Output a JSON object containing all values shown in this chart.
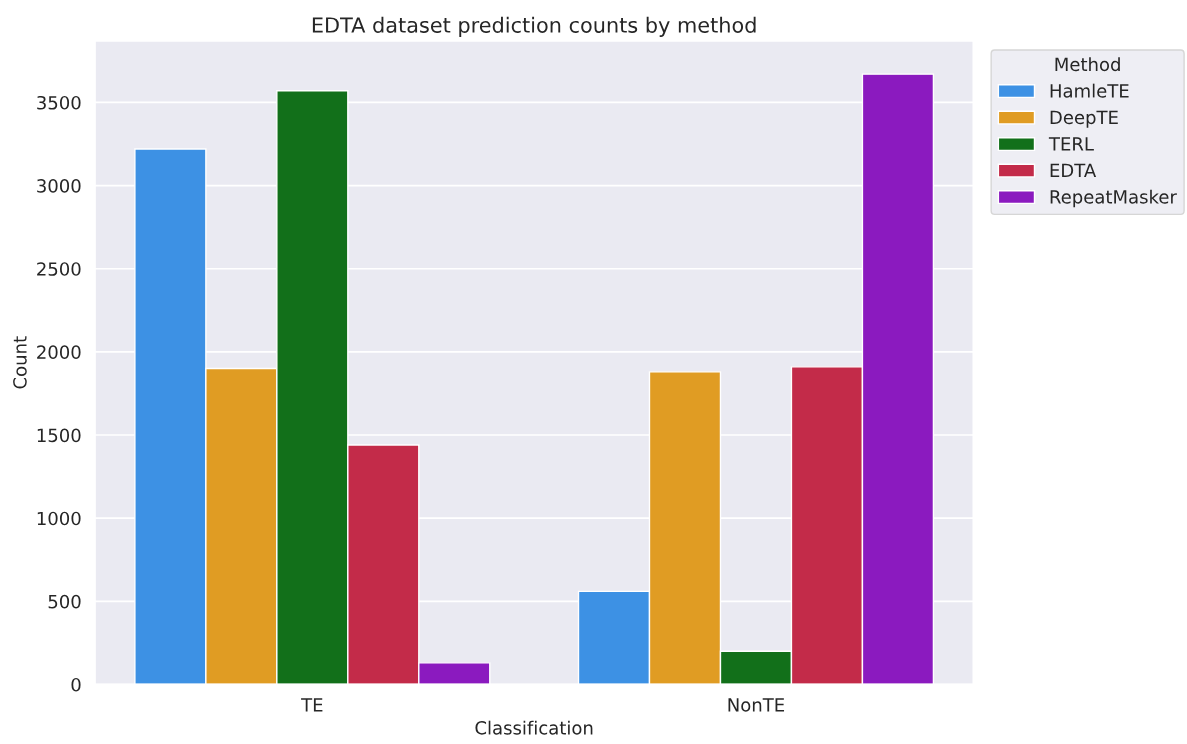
{
  "chart_data": {
    "type": "bar",
    "title": "EDTA dataset prediction counts by method",
    "xlabel": "Classification",
    "ylabel": "Count",
    "legend_title": "Method",
    "categories": [
      "TE",
      "NonTE"
    ],
    "series": [
      {
        "name": "HamleTE",
        "color": "#3d91e4",
        "values": [
          3220,
          560
        ]
      },
      {
        "name": "DeepTE",
        "color": "#e09c23",
        "values": [
          1900,
          1880
        ]
      },
      {
        "name": "TERL",
        "color": "#12701a",
        "values": [
          3570,
          200
        ]
      },
      {
        "name": "EDTA",
        "color": "#c32b49",
        "values": [
          1440,
          1910
        ]
      },
      {
        "name": "RepeatMasker",
        "color": "#8b1abf",
        "values": [
          130,
          3670
        ]
      }
    ],
    "ylim": [
      0,
      3870
    ],
    "yticks": [
      0,
      500,
      1000,
      1500,
      2000,
      2500,
      3000,
      3500
    ],
    "grid": "y",
    "legend": "top right"
  }
}
